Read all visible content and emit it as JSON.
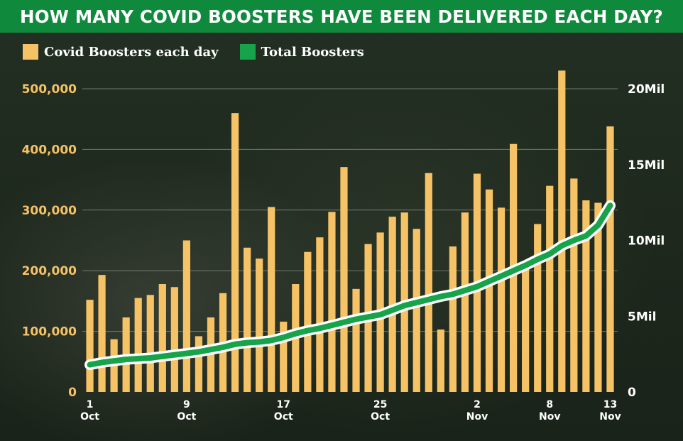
{
  "title": "HOW MANY COVID BOOSTERS HAVE BEEN DELIVERED EACH DAY?",
  "colors": {
    "title_bg": "#0f8a3c",
    "bar": "#f5c266",
    "line": "#16a34a",
    "line_outline": "#ffffff",
    "left_axis_text": "#f5c266",
    "right_axis_text": "#ffffff"
  },
  "legend": [
    {
      "label": "Covid Boosters each day",
      "color": "#f5c266"
    },
    {
      "label": "Total Boosters",
      "color": "#16a34a"
    }
  ],
  "chart_data": {
    "type": "bar",
    "title": "HOW MANY COVID BOOSTERS HAVE BEEN DELIVERED EACH DAY?",
    "xlabel": "",
    "ylabel": "",
    "ylim": [
      0,
      500000
    ],
    "y2lim": [
      0,
      20000000
    ],
    "grid": true,
    "legend_position": "top-left",
    "y_ticks": [
      "0",
      "100,000",
      "200,000",
      "300,000",
      "400,000",
      "500,000"
    ],
    "y2_ticks": [
      "0",
      "5Mil",
      "10Mil",
      "15Mil",
      "20Mil"
    ],
    "x_ticks": [
      {
        "index": 0,
        "day": "1",
        "month": "Oct"
      },
      {
        "index": 8,
        "day": "9",
        "month": "Oct"
      },
      {
        "index": 16,
        "day": "17",
        "month": "Oct"
      },
      {
        "index": 24,
        "day": "25",
        "month": "Oct"
      },
      {
        "index": 32,
        "day": "2",
        "month": "Nov"
      },
      {
        "index": 38,
        "day": "8",
        "month": "Nov"
      },
      {
        "index": 43,
        "day": "13",
        "month": "Nov"
      }
    ],
    "categories": [
      "1 Oct",
      "2 Oct",
      "3 Oct",
      "4 Oct",
      "5 Oct",
      "6 Oct",
      "7 Oct",
      "8 Oct",
      "9 Oct",
      "10 Oct",
      "11 Oct",
      "12 Oct",
      "13 Oct",
      "14 Oct",
      "15 Oct",
      "16 Oct",
      "17 Oct",
      "18 Oct",
      "19 Oct",
      "20 Oct",
      "21 Oct",
      "22 Oct",
      "23 Oct",
      "24 Oct",
      "25 Oct",
      "26 Oct",
      "27 Oct",
      "28 Oct",
      "29 Oct",
      "30 Oct",
      "31 Oct",
      "1 Nov",
      "2 Nov",
      "3 Nov",
      "4 Nov",
      "5 Nov",
      "6 Nov",
      "7 Nov",
      "8 Nov",
      "9 Nov",
      "10 Nov",
      "11 Nov",
      "12 Nov",
      "13 Nov"
    ],
    "series": [
      {
        "name": "Covid Boosters each day",
        "type": "bar",
        "axis": "left",
        "values": [
          152000,
          193000,
          87000,
          123000,
          155000,
          160000,
          178000,
          173000,
          250000,
          92000,
          123000,
          163000,
          460000,
          238000,
          220000,
          305000,
          116000,
          178000,
          231000,
          255000,
          297000,
          371000,
          170000,
          244000,
          263000,
          289000,
          296000,
          269000,
          361000,
          103000,
          240000,
          296000,
          360000,
          334000,
          304000,
          409000,
          208000,
          277000,
          340000,
          530000,
          352000,
          316000,
          312000,
          438000
        ]
      },
      {
        "name": "Total Boosters",
        "type": "line",
        "axis": "right",
        "values": [
          1800000,
          1950000,
          2050000,
          2150000,
          2200000,
          2250000,
          2350000,
          2450000,
          2550000,
          2650000,
          2800000,
          2950000,
          3150000,
          3250000,
          3300000,
          3400000,
          3600000,
          3850000,
          4050000,
          4200000,
          4400000,
          4600000,
          4800000,
          4950000,
          5100000,
          5400000,
          5700000,
          5900000,
          6100000,
          6300000,
          6450000,
          6700000,
          6950000,
          7300000,
          7650000,
          8000000,
          8350000,
          8750000,
          9100000,
          9650000,
          10000000,
          10300000,
          11000000,
          12300000
        ]
      }
    ]
  }
}
